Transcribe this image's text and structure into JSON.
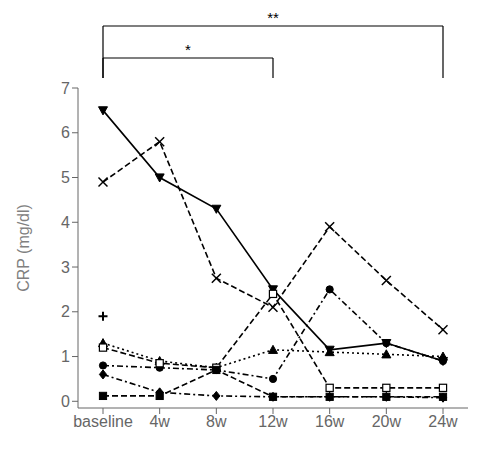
{
  "chart_data": {
    "type": "line",
    "categories": [
      "baseline",
      "4w",
      "8w",
      "12w",
      "16w",
      "20w",
      "24w"
    ],
    "ylabel": "CRP (mg/dl)",
    "ylim": [
      -0.15,
      7.0
    ],
    "yticks": [
      0,
      1,
      2,
      3,
      4,
      5,
      6,
      7
    ],
    "grid": false,
    "series": [
      {
        "color": "black",
        "marker": "triangle_down",
        "line_style": "solid",
        "values": [
          6.5,
          5.0,
          4.3,
          2.5,
          1.15,
          1.3,
          0.9
        ]
      },
      {
        "color": "black",
        "marker": "x",
        "line_style": "dashed",
        "values": [
          4.9,
          5.8,
          2.75,
          2.1,
          3.9,
          2.7,
          1.6
        ]
      },
      {
        "color": "black",
        "marker": "triangle_up",
        "line_style": "dotted",
        "values": [
          1.3,
          0.9,
          0.75,
          1.15,
          1.1,
          1.05,
          1.0
        ]
      },
      {
        "color": "black",
        "marker": "circle",
        "line_style": "dashdot",
        "values": [
          0.8,
          0.75,
          0.7,
          0.5,
          2.5,
          1.3,
          0.9
        ]
      },
      {
        "color": "black",
        "marker": "square_open",
        "line_style": "dashed",
        "values": [
          1.2,
          0.85,
          0.75,
          2.4,
          0.3,
          0.3,
          0.3
        ]
      },
      {
        "color": "black",
        "marker": "diamond",
        "line_style": "dashdot",
        "values": [
          0.6,
          0.2,
          0.12,
          0.1,
          0.1,
          0.1,
          0.08
        ]
      },
      {
        "color": "black",
        "marker": "square",
        "line_style": "dashed",
        "values": [
          0.12,
          0.12,
          0.7,
          0.1,
          0.1,
          0.1,
          0.1
        ]
      },
      {
        "type": "scatter",
        "color": "black",
        "marker": "plus",
        "values": [
          1.9,
          null,
          null,
          null,
          null,
          null,
          null
        ]
      }
    ],
    "annotations": [
      {
        "text": "*",
        "from": "baseline",
        "to": "12w"
      },
      {
        "text": "**",
        "from": "baseline",
        "to": "24w"
      }
    ]
  }
}
